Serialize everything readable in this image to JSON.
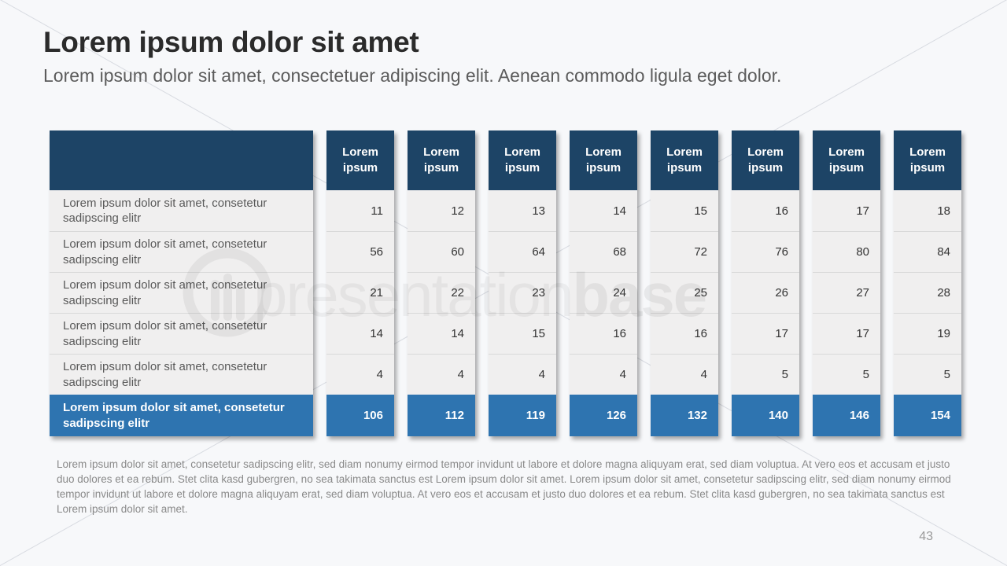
{
  "header": {
    "title": "Lorem ipsum dolor sit amet",
    "subtitle": "Lorem ipsum dolor sit amet, consectetuer adipiscing elit. Aenean commodo ligula eget dolor."
  },
  "table": {
    "label_column": {
      "header": "",
      "rows": [
        "Lorem ipsum dolor sit amet, consetetur sadipscing elitr",
        "Lorem ipsum dolor sit amet, consetetur sadipscing elitr",
        "Lorem ipsum dolor sit amet, consetetur sadipscing elitr",
        "Lorem ipsum dolor sit amet, consetetur sadipscing elitr",
        "Lorem ipsum dolor sit amet, consetetur sadipscing elitr"
      ],
      "total_label": "Lorem ipsum dolor sit amet, consetetur sadipscing elitr"
    },
    "value_columns": [
      {
        "header": "Lorem ipsum",
        "values": [
          11,
          56,
          21,
          14,
          4
        ],
        "total": 106
      },
      {
        "header": "Lorem ipsum",
        "values": [
          12,
          60,
          22,
          14,
          4
        ],
        "total": 112
      },
      {
        "header": "Lorem ipsum",
        "values": [
          13,
          64,
          23,
          15,
          4
        ],
        "total": 119
      },
      {
        "header": "Lorem ipsum",
        "values": [
          14,
          68,
          24,
          16,
          4
        ],
        "total": 126
      },
      {
        "header": "Lorem ipsum",
        "values": [
          15,
          72,
          25,
          16,
          4
        ],
        "total": 132
      },
      {
        "header": "Lorem ipsum",
        "values": [
          16,
          76,
          26,
          17,
          5
        ],
        "total": 140
      },
      {
        "header": "Lorem ipsum",
        "values": [
          17,
          80,
          27,
          17,
          5
        ],
        "total": 146
      },
      {
        "header": "Lorem ipsum",
        "values": [
          18,
          84,
          28,
          19,
          5
        ],
        "total": 154
      }
    ]
  },
  "watermark": {
    "light": "presentation",
    "bold": "base",
    "logo": "presentationbase-logo"
  },
  "footer": {
    "paragraph": "Lorem ipsum dolor sit amet, consetetur sadipscing elitr, sed diam nonumy eirmod tempor invidunt ut labore et dolore magna aliquyam erat, sed diam voluptua. At vero eos et accusam et justo duo dolores et ea rebum. Stet clita kasd gubergren, no sea takimata sanctus est Lorem ipsum dolor sit amet. Lorem ipsum dolor sit amet, consetetur sadipscing elitr, sed diam nonumy eirmod tempor invidunt ut labore et dolore magna aliquyam erat, sed diam voluptua. At vero eos et accusam et justo duo dolores et ea rebum. Stet clita kasd gubergren, no sea takimata sanctus est Lorem ipsum dolor sit amet.",
    "page_number": "43"
  },
  "colors": {
    "background": "#f7f8fa",
    "header_blue": "#1d4466",
    "total_blue": "#2e74b0",
    "row_background": "#f0efef",
    "row_separator": "#d9d9d9",
    "title_text": "#2b2b2b",
    "body_text": "#595959",
    "footer_text": "#8a8a8a"
  }
}
